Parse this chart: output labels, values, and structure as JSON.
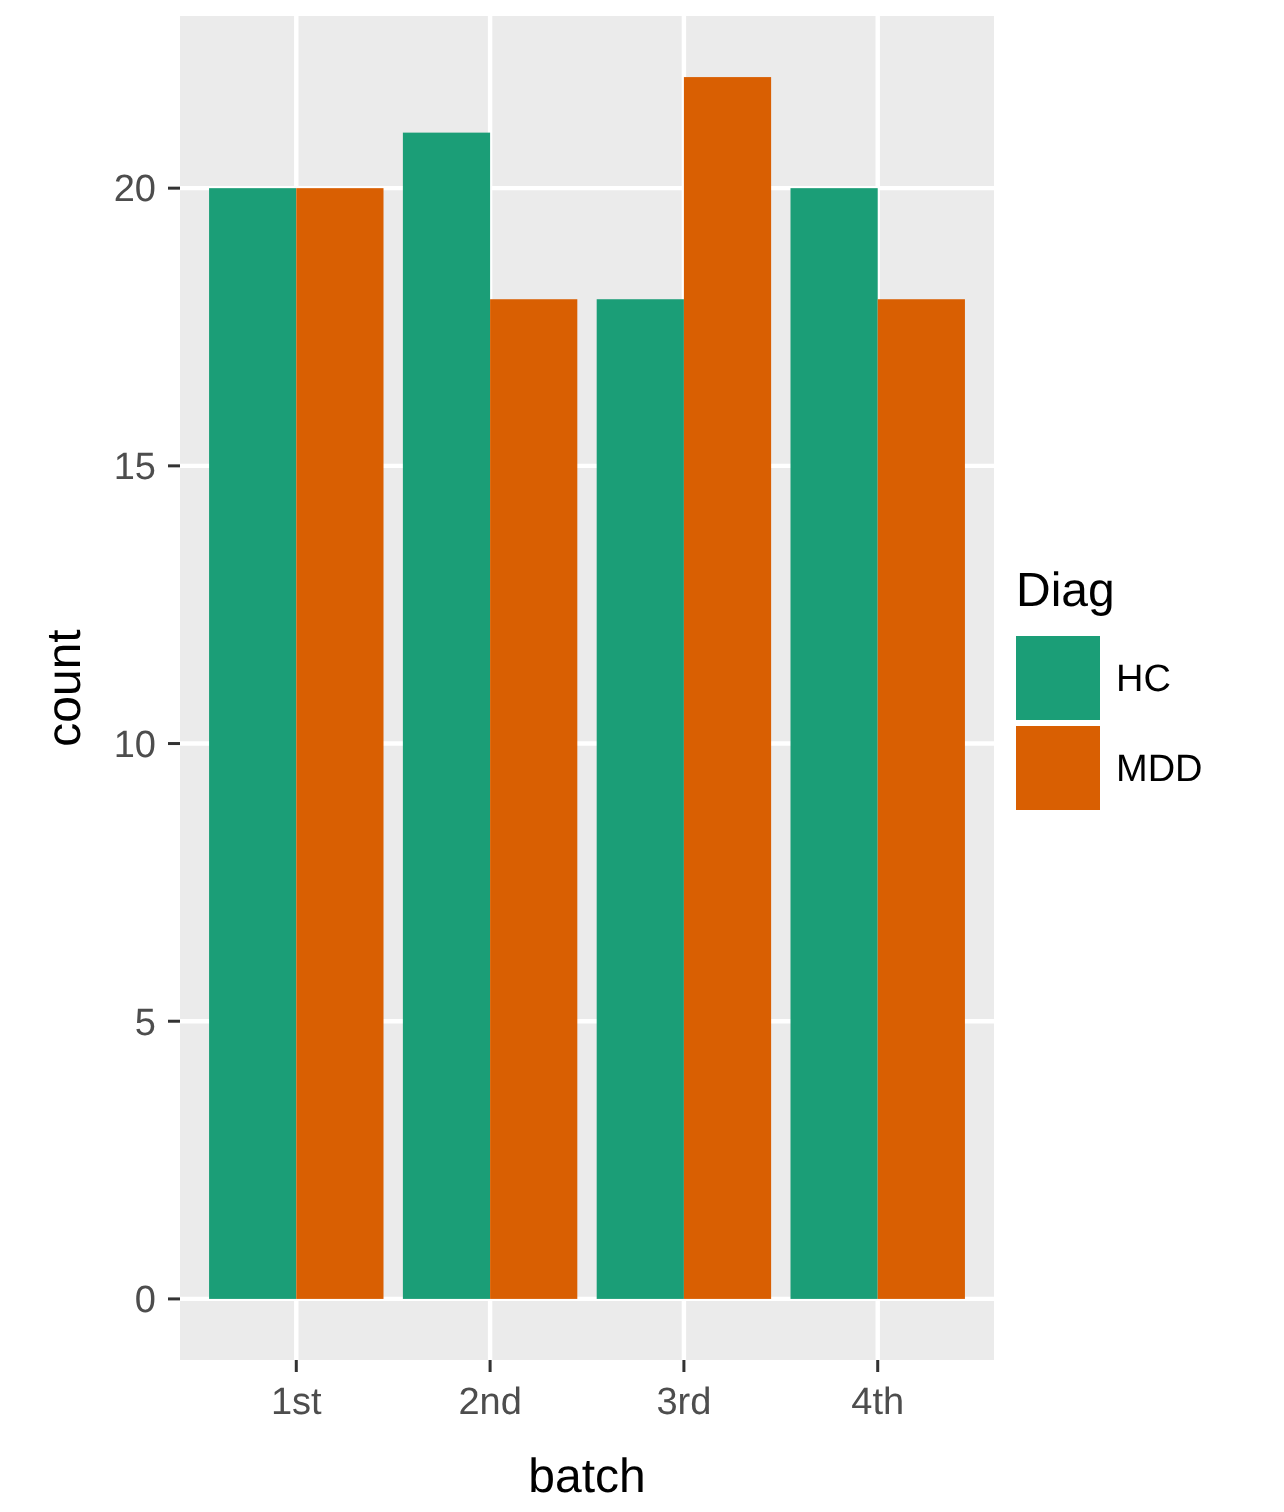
{
  "chart_data": {
    "type": "bar",
    "xlabel": "batch",
    "ylabel": "count",
    "legend_title": "Diag",
    "categories": [
      "1st",
      "2nd",
      "3rd",
      "4th"
    ],
    "series": [
      {
        "name": "HC",
        "color": "#1b9e77",
        "values": [
          20,
          21,
          18,
          20
        ]
      },
      {
        "name": "MDD",
        "color": "#d95f02",
        "values": [
          20,
          18,
          22,
          18
        ]
      }
    ],
    "ylim": [
      -1.1,
      23.1
    ],
    "yticks": [
      0,
      5,
      10,
      15,
      20
    ],
    "grid": true,
    "legend": "right"
  }
}
